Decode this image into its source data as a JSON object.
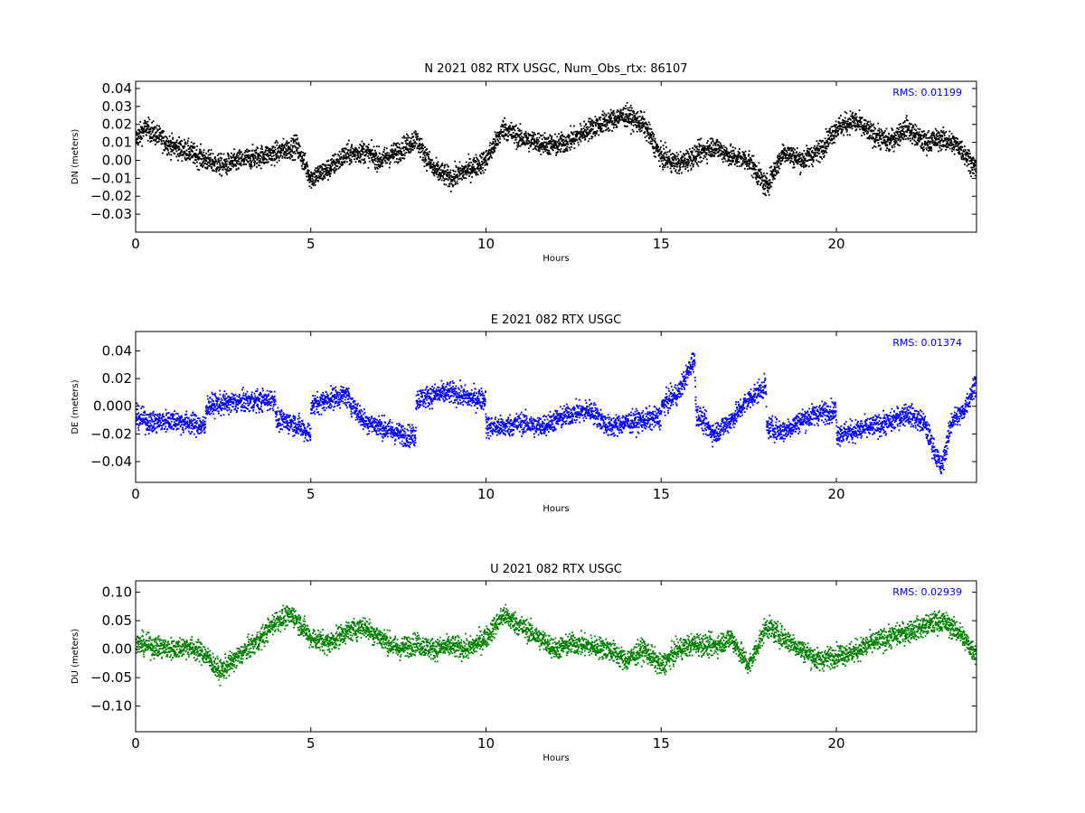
{
  "chart_data": [
    {
      "type": "scatter",
      "title": "N 2021 082 RTX  USGC, Num_Obs_rtx: 86107",
      "xlabel": "Hours",
      "ylabel": "DN (meters)",
      "xlim": [
        0,
        24
      ],
      "ylim": [
        -0.04,
        0.044
      ],
      "xticks": [
        0,
        5,
        10,
        15,
        20
      ],
      "yticks": [
        -0.03,
        -0.02,
        -0.01,
        0.0,
        0.01,
        0.02,
        0.03,
        0.04
      ],
      "ytick_labels": [
        "−0.03",
        "−0.02",
        "−0.01",
        "0.00",
        "0.01",
        "0.02",
        "0.03",
        "0.04"
      ],
      "color": "#000000",
      "annotation": "RMS:  0.01199",
      "annotation_color": "#0000ff",
      "series": [
        {
          "x": [
            0,
            0.3,
            0.6,
            1,
            1.5,
            2,
            2.5,
            3,
            3.5,
            4,
            4.6,
            5,
            5.5,
            6,
            6.5,
            7,
            7.5,
            8,
            8.5,
            9,
            9.5,
            10,
            10.5,
            11,
            11.5,
            12,
            12.5,
            13,
            13.5,
            14,
            14.5,
            15,
            15.5,
            16,
            16.5,
            17,
            17.5,
            18,
            18.5,
            19,
            19.5,
            20,
            20.5,
            21,
            21.5,
            22,
            22.5,
            23,
            23.5,
            24
          ],
          "y": [
            0.012,
            0.018,
            0.014,
            0.008,
            0.005,
            0.0,
            -0.003,
            0.0,
            0.002,
            0.004,
            0.008,
            -0.01,
            -0.005,
            0.003,
            0.005,
            0.0,
            0.005,
            0.012,
            -0.005,
            -0.01,
            -0.005,
            0.0,
            0.018,
            0.012,
            0.01,
            0.008,
            0.012,
            0.018,
            0.022,
            0.025,
            0.02,
            0.002,
            -0.002,
            0.003,
            0.008,
            0.002,
            0.0,
            -0.015,
            0.005,
            0.0,
            0.005,
            0.018,
            0.022,
            0.015,
            0.01,
            0.018,
            0.01,
            0.012,
            0.008,
            -0.005
          ]
        }
      ]
    },
    {
      "type": "scatter",
      "title": "E 2021 082 RTX  USGC",
      "xlabel": "Hours",
      "ylabel": "DE (meters)",
      "xlim": [
        0,
        24
      ],
      "ylim": [
        -0.055,
        0.054
      ],
      "xticks": [
        0,
        5,
        10,
        15,
        20
      ],
      "yticks": [
        -0.04,
        -0.02,
        0.0,
        0.02,
        0.04
      ],
      "ytick_labels": [
        "−0.04",
        "−0.02",
        "0.000",
        "0.02",
        "0.04"
      ],
      "color": "#0000ff",
      "annotation": "RMS:  0.01374",
      "annotation_color": "#0000ff",
      "series": [
        {
          "x": [
            0,
            0.5,
            1,
            1.5,
            1.99,
            2.01,
            2.5,
            3,
            3.5,
            3.99,
            4.01,
            4.5,
            4.99,
            5.01,
            5.5,
            6,
            6.5,
            7,
            7.5,
            7.99,
            8.01,
            8.5,
            9,
            9.5,
            9.99,
            10.01,
            10.5,
            11,
            11.5,
            12,
            12.5,
            13,
            13.5,
            14,
            14.5,
            14.99,
            15.01,
            15.5,
            15.95,
            16,
            16.5,
            17,
            17.5,
            17.99,
            18.01,
            18.5,
            19,
            19.5,
            19.99,
            20.01,
            20.5,
            21,
            21.5,
            22,
            22.5,
            23,
            23.3,
            23.6,
            24
          ],
          "y": [
            -0.008,
            -0.012,
            -0.01,
            -0.012,
            -0.015,
            0.0,
            0.002,
            0.003,
            0.004,
            0.005,
            -0.01,
            -0.012,
            -0.02,
            0.0,
            0.005,
            0.008,
            -0.01,
            -0.015,
            -0.02,
            -0.022,
            0.005,
            0.008,
            0.01,
            0.006,
            0.005,
            -0.015,
            -0.015,
            -0.012,
            -0.015,
            -0.01,
            -0.005,
            -0.003,
            -0.015,
            -0.012,
            -0.01,
            -0.008,
            0.0,
            0.01,
            0.035,
            -0.005,
            -0.02,
            -0.01,
            0.005,
            0.015,
            -0.015,
            -0.018,
            -0.01,
            -0.005,
            -0.003,
            -0.02,
            -0.018,
            -0.015,
            -0.012,
            -0.005,
            -0.012,
            -0.045,
            -0.01,
            -0.005,
            0.018
          ]
        }
      ]
    },
    {
      "type": "scatter",
      "title": "U 2021 082 RTX  USGC",
      "xlabel": "Hours",
      "ylabel": "DU (meters)",
      "xlim": [
        0,
        24
      ],
      "ylim": [
        -0.145,
        0.12
      ],
      "xticks": [
        0,
        5,
        10,
        15,
        20
      ],
      "yticks": [
        -0.1,
        -0.05,
        0.0,
        0.05,
        0.1
      ],
      "ytick_labels": [
        "−0.10",
        "−0.05",
        "0.00",
        "0.05",
        "0.10"
      ],
      "color": "#007f00",
      "annotation": "RMS:  0.02939",
      "annotation_color": "#0000ff",
      "series": [
        {
          "x": [
            0,
            0.5,
            1,
            1.5,
            2,
            2.4,
            2.8,
            3.2,
            3.6,
            4,
            4.5,
            5,
            5.5,
            6,
            6.5,
            7,
            7.5,
            8,
            8.5,
            9,
            9.5,
            10,
            10.5,
            11,
            11.5,
            12,
            12.5,
            13,
            13.5,
            14,
            14.5,
            15,
            15.5,
            16,
            16.5,
            17,
            17.5,
            18,
            18.5,
            19,
            19.5,
            20,
            20.5,
            21,
            21.5,
            22,
            22.5,
            23,
            23.5,
            24
          ],
          "y": [
            0.01,
            0.005,
            0.0,
            0.005,
            -0.01,
            -0.04,
            -0.02,
            0.0,
            0.02,
            0.05,
            0.06,
            0.02,
            0.01,
            0.03,
            0.04,
            0.02,
            0.0,
            0.01,
            0.0,
            0.005,
            0.0,
            0.02,
            0.06,
            0.04,
            0.02,
            0.0,
            0.01,
            0.005,
            0.0,
            -0.02,
            0.0,
            -0.03,
            0.0,
            0.01,
            0.005,
            0.02,
            -0.03,
            0.04,
            0.02,
            0.0,
            -0.02,
            -0.01,
            -0.005,
            0.01,
            0.02,
            0.03,
            0.04,
            0.05,
            0.03,
            -0.01
          ]
        }
      ]
    }
  ]
}
